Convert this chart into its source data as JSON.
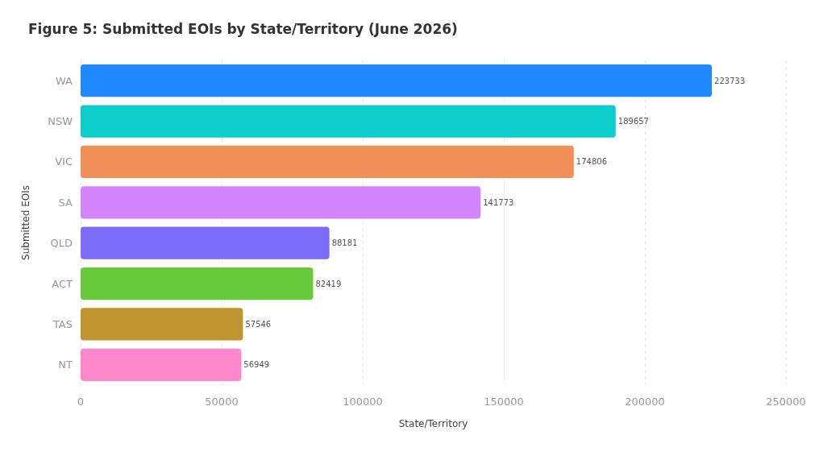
{
  "chart_data": {
    "type": "bar",
    "orientation": "horizontal",
    "title": "Figure 5: Submitted EOIs by State/Territory (June 2026)",
    "xlabel": "State/Territory",
    "ylabel": "Submitted EOIs",
    "categories": [
      "WA",
      "NSW",
      "VIC",
      "SA",
      "QLD",
      "ACT",
      "TAS",
      "NT"
    ],
    "values": [
      223733,
      189657,
      174806,
      141773,
      88181,
      82419,
      57546,
      56949
    ],
    "colors": [
      "#1f88ff",
      "#0ccccc",
      "#f08f58",
      "#d484fc",
      "#7d6cfc",
      "#69c93a",
      "#c0952f",
      "#ff88cc"
    ],
    "xlim": [
      0,
      250000
    ],
    "xticks": [
      0,
      50000,
      100000,
      150000,
      200000,
      250000
    ],
    "grid": "x",
    "data_labels": true
  }
}
